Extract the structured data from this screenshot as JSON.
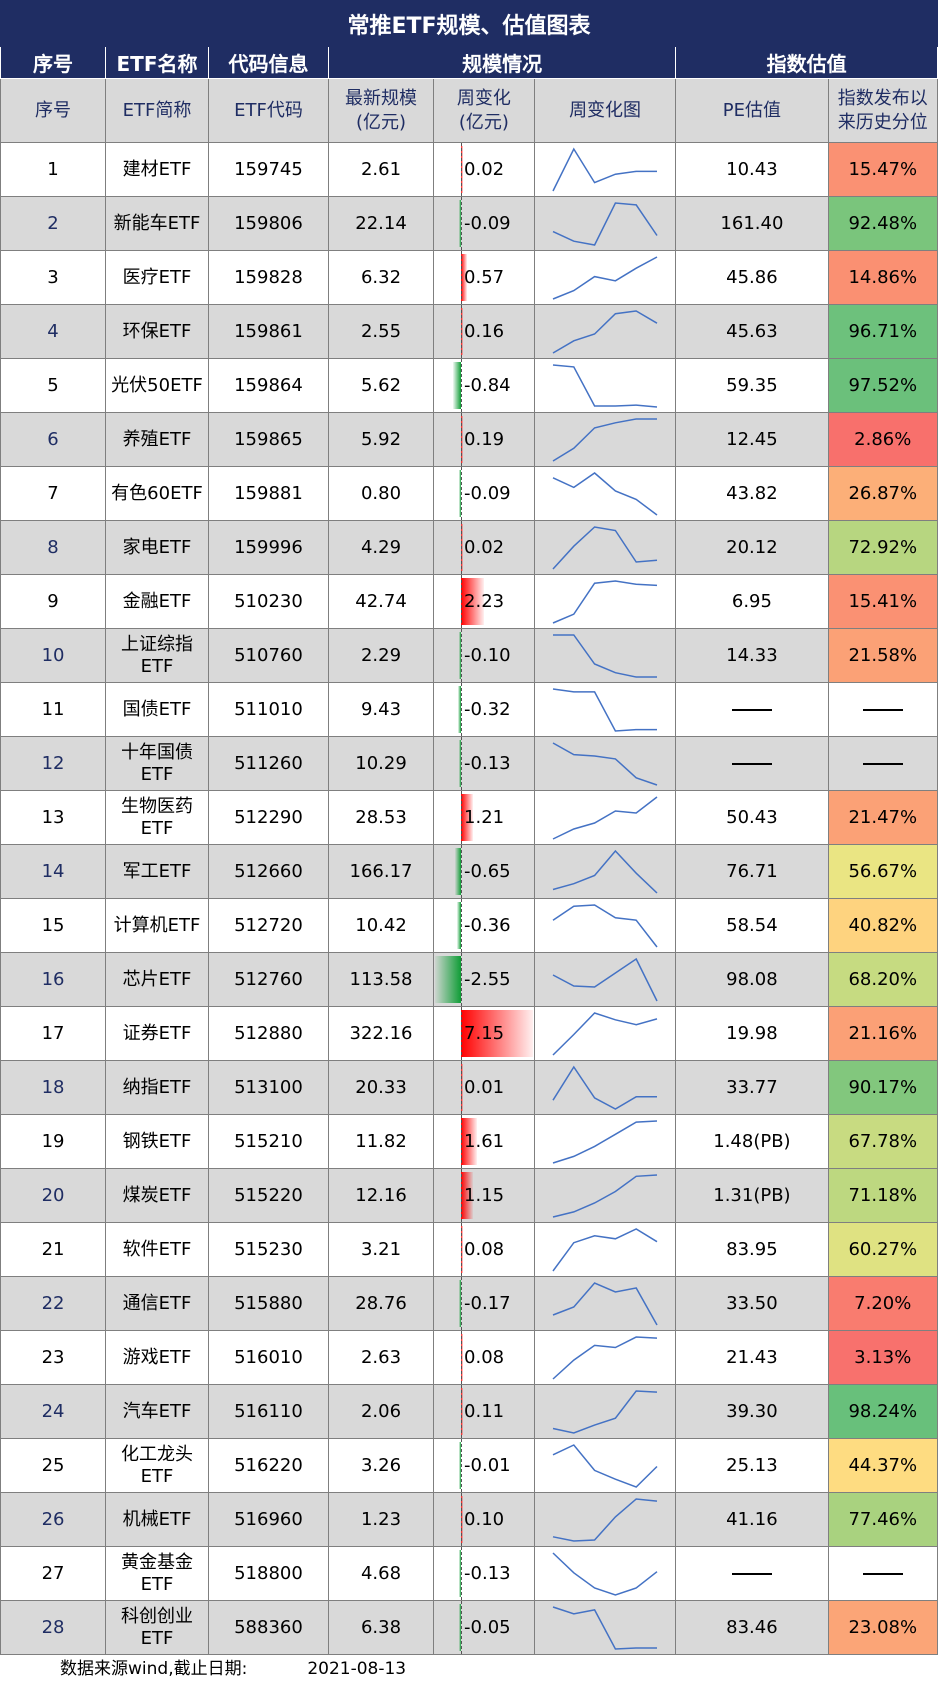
{
  "title": "常推ETF规模、估值图表",
  "group_headers": {
    "index": "序号",
    "name": "ETF名称",
    "code": "代码信息",
    "scale": "规模情况",
    "valuation": "指数估值"
  },
  "columns": {
    "index": "序号",
    "short_name": "ETF简称",
    "code": "ETF代码",
    "latest_scale": "最新规模\n(亿元)",
    "weekly_change": "周变化\n(亿元)",
    "weekly_chart": "周变化图",
    "pe": "PE估值",
    "percentile": "指数发布以\n来历史分位"
  },
  "colors": {
    "header_navy": "#1f2d63",
    "header_gray": "#d9d9d9",
    "positive_bar": "#ff0000",
    "negative_bar": "#0f9d36",
    "sparkline": "#4472c4",
    "percentile_low": "#f8696b",
    "percentile_mid": "#ffeb84",
    "percentile_high": "#63be7b"
  },
  "rows": [
    {
      "idx": "1",
      "name": "建材ETF",
      "code": "159745",
      "scale": "2.61",
      "change": 0.02,
      "change_text": "0.02",
      "spark": [
        0.5,
        2.0,
        0.8,
        1.1,
        1.2,
        1.2
      ],
      "pe": "10.43",
      "pct": 15.47,
      "pct_text": "15.47%"
    },
    {
      "idx": "2",
      "name": "新能车ETF",
      "code": "159806",
      "scale": "22.14",
      "change": -0.09,
      "change_text": "-0.09",
      "spark": [
        1.0,
        0.5,
        0.3,
        2.5,
        2.4,
        0.8
      ],
      "pe": "161.40",
      "pct": 92.48,
      "pct_text": "92.48%"
    },
    {
      "idx": "3",
      "name": "医疗ETF",
      "code": "159828",
      "scale": "6.32",
      "change": 0.57,
      "change_text": "0.57",
      "spark": [
        0.0,
        0.6,
        1.6,
        1.3,
        2.2,
        3.0
      ],
      "pe": "45.86",
      "pct": 14.86,
      "pct_text": "14.86%"
    },
    {
      "idx": "4",
      "name": "环保ETF",
      "code": "159861",
      "scale": "2.55",
      "change": 0.16,
      "change_text": "0.16",
      "spark": [
        0.2,
        1.1,
        1.6,
        3.1,
        3.3,
        2.4
      ],
      "pe": "45.63",
      "pct": 96.71,
      "pct_text": "96.71%"
    },
    {
      "idx": "5",
      "name": "光伏50ETF",
      "code": "159864",
      "scale": "5.62",
      "change": -0.84,
      "change_text": "-0.84",
      "spark": [
        4.5,
        4.3,
        0.2,
        0.2,
        0.3,
        0.1
      ],
      "pe": "59.35",
      "pct": 97.52,
      "pct_text": "97.52%"
    },
    {
      "idx": "6",
      "name": "养殖ETF",
      "code": "159865",
      "scale": "5.92",
      "change": 0.19,
      "change_text": "0.19",
      "spark": [
        0.0,
        1.0,
        2.6,
        3.0,
        3.3,
        3.3
      ],
      "pe": "12.45",
      "pct": 2.86,
      "pct_text": "2.86%"
    },
    {
      "idx": "7",
      "name": "有色60ETF",
      "code": "159881",
      "scale": "0.80",
      "change": -0.09,
      "change_text": "-0.09",
      "spark": [
        2.6,
        1.8,
        3.0,
        1.5,
        0.8,
        -0.5
      ],
      "pe": "43.82",
      "pct": 26.87,
      "pct_text": "26.87%"
    },
    {
      "idx": "8",
      "name": "家电ETF",
      "code": "159996",
      "scale": "4.29",
      "change": 0.02,
      "change_text": "0.02",
      "spark": [
        0.0,
        2.6,
        4.8,
        4.4,
        0.8,
        1.0
      ],
      "pe": "20.12",
      "pct": 72.92,
      "pct_text": "72.92%"
    },
    {
      "idx": "9",
      "name": "金融ETF",
      "code": "510230",
      "scale": "42.74",
      "change": 2.23,
      "change_text": "2.23",
      "spark": [
        0.0,
        0.8,
        3.6,
        3.8,
        3.5,
        3.4
      ],
      "pe": "6.95",
      "pct": 15.41,
      "pct_text": "15.41%"
    },
    {
      "idx": "10",
      "name": "上证综指ETF",
      "code": "510760",
      "scale": "2.29",
      "change": -0.1,
      "change_text": "-0.10",
      "spark": [
        3.0,
        3.0,
        1.0,
        0.4,
        0.1,
        0.1
      ],
      "pe": "14.33",
      "pct": 21.58,
      "pct_text": "21.58%"
    },
    {
      "idx": "11",
      "name": "国债ETF",
      "code": "511010",
      "scale": "9.43",
      "change": -0.32,
      "change_text": "-0.32",
      "spark": [
        3.0,
        2.8,
        2.8,
        0.1,
        0.2,
        0.2
      ],
      "pe": "",
      "pct": null,
      "pct_text": ""
    },
    {
      "idx": "12",
      "name": "十年国债ETF",
      "code": "511260",
      "scale": "10.29",
      "change": -0.13,
      "change_text": "-0.13",
      "spark": [
        3.0,
        2.2,
        2.1,
        1.9,
        0.6,
        0.1
      ],
      "pe": "",
      "pct": null,
      "pct_text": ""
    },
    {
      "idx": "13",
      "name": "生物医药ETF",
      "code": "512290",
      "scale": "28.53",
      "change": 1.21,
      "change_text": "1.21",
      "spark": [
        0.0,
        1.0,
        1.6,
        2.8,
        2.6,
        4.2
      ],
      "pe": "50.43",
      "pct": 21.47,
      "pct_text": "21.47%"
    },
    {
      "idx": "14",
      "name": "军工ETF",
      "code": "512660",
      "scale": "166.17",
      "change": -0.65,
      "change_text": "-0.65",
      "spark": [
        0.3,
        0.8,
        1.5,
        3.6,
        1.7,
        0.0
      ],
      "pe": "76.71",
      "pct": 56.67,
      "pct_text": "56.67%"
    },
    {
      "idx": "15",
      "name": "计算机ETF",
      "code": "512720",
      "scale": "10.42",
      "change": -0.36,
      "change_text": "-0.36",
      "spark": [
        2.3,
        3.5,
        3.6,
        2.5,
        2.3,
        0.0
      ],
      "pe": "58.54",
      "pct": 40.82,
      "pct_text": "40.82%"
    },
    {
      "idx": "16",
      "name": "芯片ETF",
      "code": "512760",
      "scale": "113.58",
      "change": -2.55,
      "change_text": "-2.55",
      "spark": [
        2.6,
        1.5,
        1.4,
        2.8,
        4.2,
        0.0
      ],
      "pe": "98.08",
      "pct": 68.2,
      "pct_text": "68.20%"
    },
    {
      "idx": "17",
      "name": "证券ETF",
      "code": "512880",
      "scale": "322.16",
      "change": 7.15,
      "change_text": "7.15",
      "spark": [
        0.0,
        2.1,
        4.3,
        3.6,
        3.1,
        3.7
      ],
      "pe": "19.98",
      "pct": 21.16,
      "pct_text": "21.16%"
    },
    {
      "idx": "18",
      "name": "纳指ETF",
      "code": "513100",
      "scale": "20.33",
      "change": 0.01,
      "change_text": "0.01",
      "spark": [
        1.0,
        4.0,
        1.2,
        0.2,
        1.3,
        1.3
      ],
      "pe": "33.77",
      "pct": 90.17,
      "pct_text": "90.17%"
    },
    {
      "idx": "19",
      "name": "钢铁ETF",
      "code": "515210",
      "scale": "11.82",
      "change": 1.61,
      "change_text": "1.61",
      "spark": [
        0.0,
        0.6,
        1.5,
        2.6,
        3.7,
        3.8
      ],
      "pe": "1.48(PB)",
      "pct": 67.78,
      "pct_text": "67.78%"
    },
    {
      "idx": "20",
      "name": "煤炭ETF",
      "code": "515220",
      "scale": "12.16",
      "change": 1.15,
      "change_text": "1.15",
      "spark": [
        0.0,
        0.4,
        1.1,
        2.0,
        3.2,
        3.3
      ],
      "pe": "1.31(PB)",
      "pct": 71.18,
      "pct_text": "71.18%"
    },
    {
      "idx": "21",
      "name": "软件ETF",
      "code": "515230",
      "scale": "3.21",
      "change": 0.08,
      "change_text": "0.08",
      "spark": [
        0.0,
        2.9,
        3.6,
        3.3,
        4.3,
        3.0
      ],
      "pe": "83.95",
      "pct": 60.27,
      "pct_text": "60.27%"
    },
    {
      "idx": "22",
      "name": "通信ETF",
      "code": "515880",
      "scale": "28.76",
      "change": -0.17,
      "change_text": "-0.17",
      "spark": [
        1.0,
        1.8,
        4.2,
        3.3,
        3.7,
        0.0
      ],
      "pe": "33.50",
      "pct": 7.2,
      "pct_text": "7.20%"
    },
    {
      "idx": "23",
      "name": "游戏ETF",
      "code": "516010",
      "scale": "2.63",
      "change": 0.08,
      "change_text": "0.08",
      "spark": [
        0.0,
        1.8,
        3.2,
        3.0,
        4.0,
        3.9
      ],
      "pe": "21.43",
      "pct": 3.13,
      "pct_text": "3.13%"
    },
    {
      "idx": "24",
      "name": "汽车ETF",
      "code": "516110",
      "scale": "2.06",
      "change": 0.11,
      "change_text": "0.11",
      "spark": [
        0.4,
        0.0,
        0.7,
        1.3,
        3.7,
        3.6
      ],
      "pe": "39.30",
      "pct": 98.24,
      "pct_text": "98.24%"
    },
    {
      "idx": "25",
      "name": "化工龙头ETF",
      "code": "516220",
      "scale": "3.26",
      "change": -0.01,
      "change_text": "-0.01",
      "spark": [
        3.3,
        4.3,
        1.7,
        0.8,
        0.0,
        2.1
      ],
      "pe": "25.13",
      "pct": 44.37,
      "pct_text": "44.37%"
    },
    {
      "idx": "26",
      "name": "机械ETF",
      "code": "516960",
      "scale": "1.23",
      "change": 0.1,
      "change_text": "0.10",
      "spark": [
        0.4,
        0.0,
        0.1,
        2.3,
        4.0,
        3.8
      ],
      "pe": "41.16",
      "pct": 77.46,
      "pct_text": "77.46%"
    },
    {
      "idx": "27",
      "name": "黄金基金ETF",
      "code": "518800",
      "scale": "4.68",
      "change": -0.13,
      "change_text": "-0.13",
      "spark": [
        3.6,
        1.9,
        0.6,
        0.0,
        0.6,
        2.0
      ],
      "pe": "",
      "pct": null,
      "pct_text": ""
    },
    {
      "idx": "28",
      "name": "科创创业ETF",
      "code": "588360",
      "scale": "6.38",
      "change": -0.05,
      "change_text": "-0.05",
      "spark": [
        4.3,
        3.6,
        4.0,
        0.0,
        0.1,
        0.1
      ],
      "pe": "83.46",
      "pct": 23.08,
      "pct_text": "23.08%"
    }
  ],
  "footer": {
    "source": "数据来源wind,截止日期:",
    "date": "2021-08-13"
  }
}
